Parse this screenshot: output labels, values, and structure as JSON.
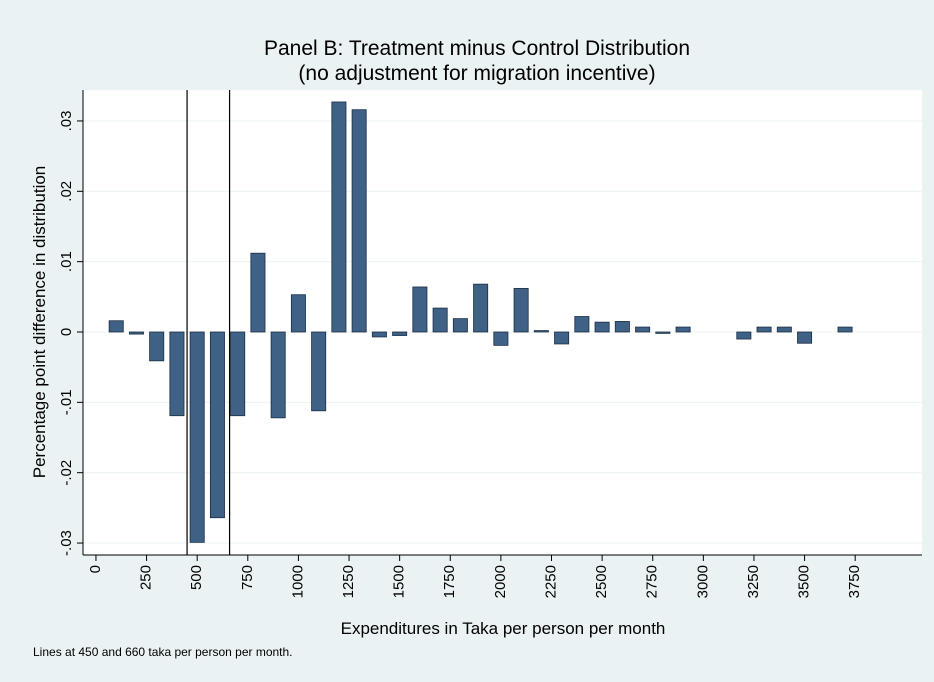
{
  "chart_data": {
    "type": "bar",
    "title": "Panel B: Treatment minus Control Distribution",
    "subtitle": "(no adjustment for migration incentive)",
    "x_label": "Expenditures in Taka per person per month",
    "y_label": "Percentage point difference in distribution",
    "note": "Lines at 450 and 660 taka per person per month.",
    "x": [
      100,
      200,
      300,
      400,
      500,
      600,
      700,
      800,
      900,
      1000,
      1100,
      1200,
      1300,
      1400,
      1500,
      1600,
      1700,
      1800,
      1900,
      2000,
      2100,
      2200,
      2300,
      2400,
      2500,
      2600,
      2700,
      2800,
      2900,
      3200,
      3300,
      3400,
      3500,
      3700
    ],
    "values": [
      0.0016,
      -0.0003,
      -0.0041,
      -0.0119,
      -0.0299,
      -0.0264,
      -0.0119,
      0.0112,
      -0.0122,
      0.0053,
      -0.0112,
      0.0327,
      0.0316,
      -0.0007,
      -0.0005,
      0.0064,
      0.0034,
      0.0019,
      0.0068,
      -0.0019,
      0.0062,
      0.0002,
      -0.0017,
      0.0022,
      0.0014,
      0.0015,
      0.0007,
      -0.0002,
      0.0007,
      -0.001,
      0.0007,
      0.0007,
      -0.0016,
      0.0007
    ],
    "color": "#3e6185",
    "vlines": [
      450,
      660
    ],
    "xlim": [
      -64,
      4080
    ],
    "ylim": [
      -0.0317,
      0.0344
    ],
    "xticks": [
      0,
      250,
      500,
      750,
      1000,
      1250,
      1500,
      1750,
      2000,
      2250,
      2500,
      2750,
      3000,
      3250,
      3500,
      3750
    ],
    "yticks": [
      {
        "value": -0.03,
        "label": "-.03"
      },
      {
        "value": -0.02,
        "label": "-.02"
      },
      {
        "value": -0.01,
        "label": "-.01"
      },
      0,
      {
        "value": 0.01,
        "label": ".01"
      },
      {
        "value": 0.02,
        "label": ".02"
      },
      {
        "value": 0.03,
        "label": ".03"
      }
    ],
    "grid": true
  }
}
